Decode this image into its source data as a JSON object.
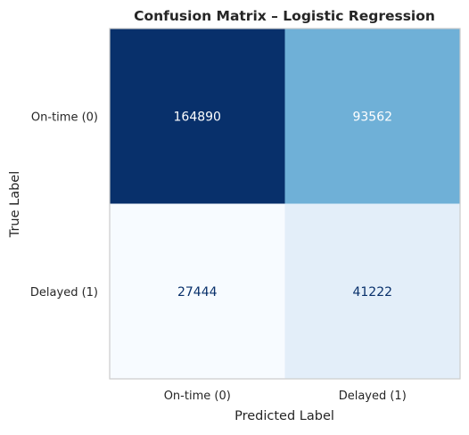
{
  "chart_data": {
    "type": "heatmap",
    "title": "Confusion Matrix – Logistic Regression",
    "xlabel": "Predicted Label",
    "ylabel": "True Label",
    "x_categories": [
      "On-time (0)",
      "Delayed (1)"
    ],
    "y_categories": [
      "On-time (0)",
      "Delayed (1)"
    ],
    "values": [
      [
        164890,
        93562
      ],
      [
        27444,
        41222
      ]
    ],
    "colormap": "Blues",
    "colors": {
      "cells": [
        [
          "#08306b",
          "#6fb0d7"
        ],
        [
          "#f7fbff",
          "#e3eef9"
        ]
      ],
      "text_on_dark": "#ffffff",
      "text_on_light": "#08306b",
      "border": "#cccccc"
    },
    "grid": false
  }
}
